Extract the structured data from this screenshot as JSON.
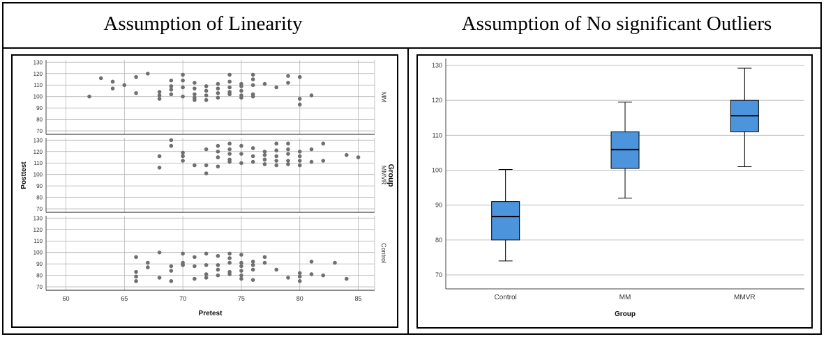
{
  "headings": {
    "left": "Assumption of Linearity",
    "right": "Assumption of No significant Outliers"
  },
  "colors": {
    "point": "#6f6f6f",
    "box_fill": "#4c94dc",
    "grid": "#b4b4b4",
    "axis": "#444444"
  },
  "chart_data": [
    {
      "type": "scatter",
      "xlabel": "Pretest",
      "ylabel": "Posttest",
      "facet_label": "Group",
      "xlim": [
        58.3,
        86.4
      ],
      "ylim": [
        67,
        132
      ],
      "x_ticks": [
        60,
        65,
        70,
        75,
        80,
        85
      ],
      "y_ticks": [
        70,
        80,
        90,
        100,
        110,
        120,
        130
      ],
      "grid": true,
      "panels": [
        {
          "name": "MM",
          "points": [
            [
              62,
              100
            ],
            [
              63,
              116
            ],
            [
              64,
              113
            ],
            [
              64,
              107
            ],
            [
              65,
              110
            ],
            [
              66,
              117
            ],
            [
              66,
              103
            ],
            [
              67,
              120
            ],
            [
              68,
              104
            ],
            [
              68,
              101
            ],
            [
              68,
              98
            ],
            [
              69,
              114
            ],
            [
              69,
              109
            ],
            [
              69,
              106
            ],
            [
              69,
              102
            ],
            [
              70,
              119
            ],
            [
              70,
              114
            ],
            [
              70,
              108
            ],
            [
              70,
              100
            ],
            [
              71,
              112
            ],
            [
              71,
              107
            ],
            [
              71,
              102
            ],
            [
              71,
              99
            ],
            [
              71,
              97
            ],
            [
              72,
              109
            ],
            [
              72,
              105
            ],
            [
              72,
              101
            ],
            [
              72,
              97
            ],
            [
              73,
              111
            ],
            [
              73,
              107
            ],
            [
              73,
              103
            ],
            [
              73,
              99
            ],
            [
              74,
              119
            ],
            [
              74,
              113
            ],
            [
              74,
              108
            ],
            [
              74,
              104
            ],
            [
              74,
              102
            ],
            [
              75,
              111
            ],
            [
              75,
              109
            ],
            [
              75,
              105
            ],
            [
              75,
              101
            ],
            [
              75,
              99
            ],
            [
              76,
              119
            ],
            [
              76,
              115
            ],
            [
              76,
              110
            ],
            [
              76,
              102
            ],
            [
              76,
              100
            ],
            [
              77,
              111
            ],
            [
              78,
              108
            ],
            [
              79,
              118
            ],
            [
              79,
              112
            ],
            [
              80,
              117
            ],
            [
              80,
              98
            ],
            [
              80,
              93
            ],
            [
              81,
              101
            ]
          ]
        },
        {
          "name": "MMVR",
          "points": [
            [
              68,
              116
            ],
            [
              68,
              106
            ],
            [
              69,
              130
            ],
            [
              69,
              125
            ],
            [
              70,
              119
            ],
            [
              70,
              116
            ],
            [
              70,
              112
            ],
            [
              71,
              108
            ],
            [
              72,
              122
            ],
            [
              72,
              108
            ],
            [
              72,
              101
            ],
            [
              73,
              125
            ],
            [
              73,
              120
            ],
            [
              73,
              115
            ],
            [
              73,
              107
            ],
            [
              74,
              127
            ],
            [
              74,
              122
            ],
            [
              74,
              118
            ],
            [
              74,
              113
            ],
            [
              74,
              111
            ],
            [
              75,
              125
            ],
            [
              75,
              118
            ],
            [
              75,
              110
            ],
            [
              76,
              123
            ],
            [
              76,
              116
            ],
            [
              76,
              111
            ],
            [
              77,
              120
            ],
            [
              77,
              117
            ],
            [
              77,
              113
            ],
            [
              77,
              109
            ],
            [
              78,
              127
            ],
            [
              78,
              121
            ],
            [
              78,
              116
            ],
            [
              78,
              112
            ],
            [
              78,
              108
            ],
            [
              79,
              127
            ],
            [
              79,
              122
            ],
            [
              79,
              118
            ],
            [
              79,
              112
            ],
            [
              79,
              109
            ],
            [
              80,
              120
            ],
            [
              80,
              116
            ],
            [
              80,
              112
            ],
            [
              80,
              108
            ],
            [
              81,
              122
            ],
            [
              81,
              111
            ],
            [
              82,
              127
            ],
            [
              82,
              112
            ],
            [
              84,
              117
            ],
            [
              85,
              115
            ]
          ]
        },
        {
          "name": "Control",
          "points": [
            [
              66,
              96
            ],
            [
              66,
              83
            ],
            [
              66,
              79
            ],
            [
              66,
              75
            ],
            [
              67,
              91
            ],
            [
              67,
              87
            ],
            [
              68,
              100
            ],
            [
              68,
              78
            ],
            [
              69,
              88
            ],
            [
              69,
              84
            ],
            [
              69,
              75
            ],
            [
              70,
              99
            ],
            [
              70,
              91
            ],
            [
              70,
              89
            ],
            [
              71,
              96
            ],
            [
              71,
              88
            ],
            [
              71,
              77
            ],
            [
              72,
              99
            ],
            [
              72,
              89
            ],
            [
              72,
              81
            ],
            [
              72,
              78
            ],
            [
              73,
              97
            ],
            [
              73,
              89
            ],
            [
              73,
              85
            ],
            [
              73,
              80
            ],
            [
              74,
              99
            ],
            [
              74,
              95
            ],
            [
              74,
              91
            ],
            [
              74,
              83
            ],
            [
              74,
              81
            ],
            [
              75,
              98
            ],
            [
              75,
              91
            ],
            [
              75,
              88
            ],
            [
              75,
              84
            ],
            [
              75,
              80
            ],
            [
              75,
              77
            ],
            [
              76,
              92
            ],
            [
              76,
              89
            ],
            [
              76,
              85
            ],
            [
              76,
              76
            ],
            [
              77,
              96
            ],
            [
              77,
              91
            ],
            [
              78,
              85
            ],
            [
              79,
              78
            ],
            [
              80,
              82
            ],
            [
              80,
              79
            ],
            [
              80,
              75
            ],
            [
              81,
              92
            ],
            [
              81,
              81
            ],
            [
              82,
              80
            ],
            [
              83,
              91
            ],
            [
              84,
              77
            ]
          ]
        }
      ]
    },
    {
      "type": "box",
      "xlabel": "Group",
      "ylabel": "",
      "categories": [
        "Control",
        "MM",
        "MMVR"
      ],
      "ylim": [
        66,
        132
      ],
      "y_ticks": [
        70,
        80,
        90,
        100,
        110,
        120,
        130
      ],
      "grid": true,
      "boxes": [
        {
          "name": "Control",
          "min": 74,
          "q1": 80,
          "median": 86.7,
          "q3": 91,
          "max": 100.2
        },
        {
          "name": "MM",
          "min": 92,
          "q1": 100.5,
          "median": 105.9,
          "q3": 111,
          "max": 119.5
        },
        {
          "name": "MMVR",
          "min": 101,
          "q1": 111,
          "median": 115.6,
          "q3": 120,
          "max": 129.2
        }
      ]
    }
  ]
}
